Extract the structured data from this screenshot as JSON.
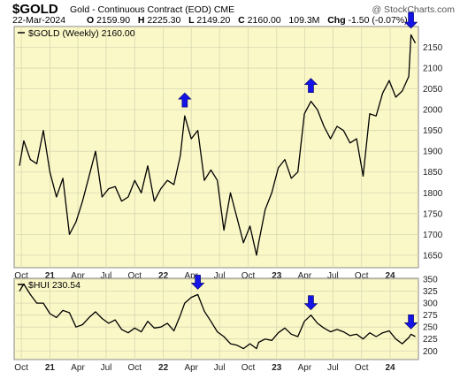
{
  "header": {
    "symbol": "$GOLD",
    "name": "Gold - Continuous Contract (EOD)",
    "exchange": "CME",
    "source": "@ StockCharts.com",
    "date": "22-Mar-2024",
    "open_label": "O",
    "open": "2159.90",
    "high_label": "H",
    "high": "2225.30",
    "low_label": "L",
    "low": "2149.20",
    "close_label": "C",
    "close": "2160.00",
    "volume": "109.3M",
    "chg_label": "Chg",
    "chg": "-1.50 (-0.07%)"
  },
  "colors": {
    "background": "#fbf8c8",
    "line": "#000000",
    "arrow": "#1414e6",
    "grid": "#d8d8b0"
  },
  "chart_data": [
    {
      "type": "line",
      "legend": "$GOLD (Weekly) 2160.00",
      "ylim": [
        1620,
        2200
      ],
      "yticks": [
        1650,
        1700,
        1750,
        1800,
        1850,
        1900,
        1950,
        2000,
        2050,
        2100,
        2150
      ],
      "xticks": [
        "Oct",
        "21",
        "Apr",
        "Jul",
        "Oct",
        "22",
        "Apr",
        "Jul",
        "Oct",
        "23",
        "Apr",
        "Jul",
        "Oct",
        "24"
      ],
      "x": [
        "2020-09-25",
        "2020-10-09",
        "2020-10-30",
        "2020-11-20",
        "2020-12-11",
        "2021-01-01",
        "2021-01-22",
        "2021-02-12",
        "2021-03-05",
        "2021-03-26",
        "2021-04-16",
        "2021-05-07",
        "2021-05-28",
        "2021-06-18",
        "2021-07-09",
        "2021-07-30",
        "2021-08-20",
        "2021-09-10",
        "2021-10-01",
        "2021-10-22",
        "2021-11-12",
        "2021-12-03",
        "2021-12-24",
        "2022-01-14",
        "2022-02-04",
        "2022-02-25",
        "2022-03-11",
        "2022-04-01",
        "2022-04-22",
        "2022-05-13",
        "2022-06-03",
        "2022-06-24",
        "2022-07-15",
        "2022-08-05",
        "2022-08-26",
        "2022-09-16",
        "2022-10-07",
        "2022-10-28",
        "2022-11-04",
        "2022-11-25",
        "2022-12-16",
        "2023-01-06",
        "2023-01-27",
        "2023-02-17",
        "2023-03-10",
        "2023-03-31",
        "2023-04-21",
        "2023-05-12",
        "2023-06-02",
        "2023-06-23",
        "2023-07-14",
        "2023-08-04",
        "2023-08-25",
        "2023-09-15",
        "2023-10-06",
        "2023-10-27",
        "2023-11-17",
        "2023-12-08",
        "2023-12-29",
        "2024-01-19",
        "2024-02-09",
        "2024-03-01",
        "2024-03-08",
        "2024-03-22"
      ],
      "values": [
        1865,
        1925,
        1880,
        1870,
        1950,
        1850,
        1790,
        1835,
        1700,
        1730,
        1780,
        1840,
        1900,
        1790,
        1810,
        1815,
        1780,
        1790,
        1830,
        1800,
        1865,
        1780,
        1810,
        1830,
        1820,
        1890,
        1985,
        1930,
        1950,
        1830,
        1855,
        1830,
        1710,
        1800,
        1740,
        1680,
        1720,
        1650,
        1680,
        1760,
        1800,
        1860,
        1880,
        1835,
        1850,
        1990,
        2020,
        2000,
        1960,
        1930,
        1960,
        1950,
        1920,
        1930,
        1840,
        1990,
        1985,
        2040,
        2070,
        2030,
        2045,
        2080,
        2180,
        2160
      ],
      "arrows_at": [
        "2022-03-11",
        "2023-04-21",
        "2024-03-08"
      ]
    },
    {
      "type": "line",
      "legend": "$HUI 230.54",
      "ylim": [
        182,
        352
      ],
      "yticks": [
        200,
        225,
        250,
        275,
        300,
        325,
        350
      ],
      "xticks": [
        "Oct",
        "21",
        "Apr",
        "Jul",
        "Oct",
        "22",
        "Apr",
        "Jul",
        "Oct",
        "23",
        "Apr",
        "Jul",
        "Oct",
        "24"
      ],
      "x": [
        "2020-09-25",
        "2020-10-09",
        "2020-10-30",
        "2020-11-20",
        "2020-12-11",
        "2021-01-01",
        "2021-01-22",
        "2021-02-12",
        "2021-03-05",
        "2021-03-26",
        "2021-04-16",
        "2021-05-07",
        "2021-05-28",
        "2021-06-18",
        "2021-07-09",
        "2021-07-30",
        "2021-08-20",
        "2021-09-10",
        "2021-10-01",
        "2021-10-22",
        "2021-11-12",
        "2021-12-03",
        "2021-12-24",
        "2022-01-14",
        "2022-02-04",
        "2022-02-25",
        "2022-03-11",
        "2022-04-01",
        "2022-04-22",
        "2022-05-13",
        "2022-06-03",
        "2022-06-24",
        "2022-07-15",
        "2022-08-05",
        "2022-08-26",
        "2022-09-16",
        "2022-10-07",
        "2022-10-28",
        "2022-11-04",
        "2022-11-25",
        "2022-12-16",
        "2023-01-06",
        "2023-01-27",
        "2023-02-17",
        "2023-03-10",
        "2023-03-31",
        "2023-04-21",
        "2023-05-12",
        "2023-06-02",
        "2023-06-23",
        "2023-07-14",
        "2023-08-04",
        "2023-08-25",
        "2023-09-15",
        "2023-10-06",
        "2023-10-27",
        "2023-11-17",
        "2023-12-08",
        "2023-12-29",
        "2024-01-19",
        "2024-02-09",
        "2024-03-01",
        "2024-03-08",
        "2024-03-22"
      ],
      "values": [
        325,
        340,
        318,
        300,
        300,
        278,
        270,
        285,
        280,
        250,
        255,
        270,
        282,
        268,
        258,
        265,
        245,
        238,
        248,
        240,
        262,
        248,
        250,
        258,
        242,
        275,
        300,
        312,
        318,
        283,
        262,
        240,
        230,
        215,
        212,
        205,
        215,
        205,
        218,
        225,
        222,
        238,
        248,
        235,
        230,
        262,
        275,
        258,
        248,
        240,
        245,
        240,
        232,
        235,
        225,
        238,
        230,
        238,
        242,
        225,
        215,
        228,
        235,
        230
      ],
      "arrows_at": [
        "2022-04-22",
        "2023-04-21",
        "2024-03-08"
      ]
    }
  ]
}
